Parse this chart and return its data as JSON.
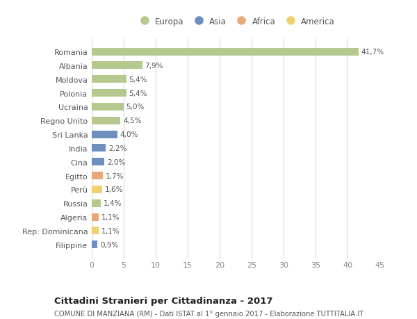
{
  "countries": [
    "Romania",
    "Albania",
    "Moldova",
    "Polonia",
    "Ucraina",
    "Regno Unito",
    "Sri Lanka",
    "India",
    "Cina",
    "Egitto",
    "Perù",
    "Russia",
    "Algeria",
    "Rep. Dominicana",
    "Filippine"
  ],
  "values": [
    41.7,
    7.9,
    5.4,
    5.4,
    5.0,
    4.5,
    4.0,
    2.2,
    2.0,
    1.7,
    1.6,
    1.4,
    1.1,
    1.1,
    0.9
  ],
  "labels": [
    "41,7%",
    "7,9%",
    "5,4%",
    "5,4%",
    "5,0%",
    "4,5%",
    "4,0%",
    "2,2%",
    "2,0%",
    "1,7%",
    "1,6%",
    "1,4%",
    "1,1%",
    "1,1%",
    "0,9%"
  ],
  "continent": [
    "Europa",
    "Europa",
    "Europa",
    "Europa",
    "Europa",
    "Europa",
    "Asia",
    "Asia",
    "Asia",
    "Africa",
    "America",
    "Europa",
    "Africa",
    "America",
    "Asia"
  ],
  "colors": {
    "Europa": "#b5c98e",
    "Asia": "#6d8ebf",
    "Africa": "#e8a87c",
    "America": "#f0d070"
  },
  "legend_order": [
    "Europa",
    "Asia",
    "Africa",
    "America"
  ],
  "title": "Cittadini Stranieri per Cittadinanza - 2017",
  "subtitle": "COMUNE DI MANZIANA (RM) - Dati ISTAT al 1° gennaio 2017 - Elaborazione TUTTITALIA.IT",
  "xlim": [
    0,
    45
  ],
  "xticks": [
    0,
    5,
    10,
    15,
    20,
    25,
    30,
    35,
    40,
    45
  ],
  "background_color": "#ffffff",
  "grid_color": "#d8d8d8"
}
